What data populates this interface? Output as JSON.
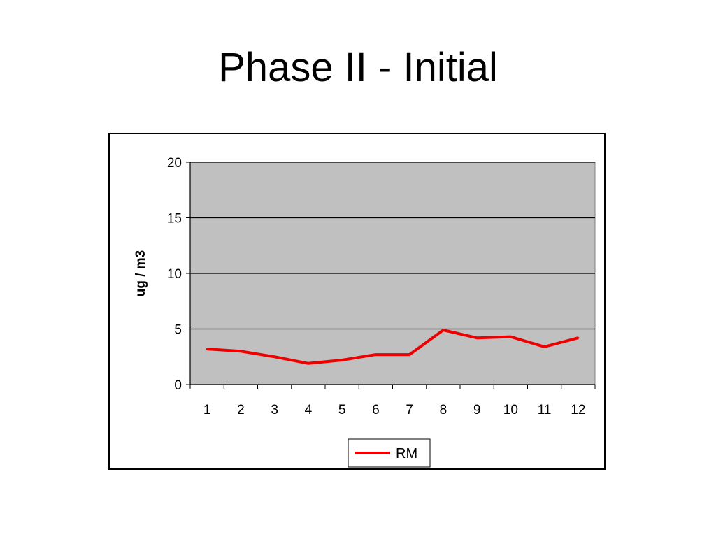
{
  "slide": {
    "title": "Phase II - Initial"
  },
  "chart_data": {
    "type": "line",
    "categories": [
      "1",
      "2",
      "3",
      "4",
      "5",
      "6",
      "7",
      "8",
      "9",
      "10",
      "11",
      "12"
    ],
    "series": [
      {
        "name": "RM",
        "values": [
          3.2,
          3.0,
          2.5,
          1.9,
          2.2,
          2.7,
          2.7,
          4.9,
          4.2,
          4.3,
          3.4,
          4.2
        ],
        "color": "#ee0000"
      }
    ],
    "title": "",
    "xlabel": "",
    "ylabel": "ug / m3",
    "ylim": [
      0,
      20
    ],
    "yticks": [
      0,
      5,
      10,
      15,
      20
    ],
    "grid": true,
    "plot_background": "#c0c0c0",
    "legend_position": "bottom"
  }
}
